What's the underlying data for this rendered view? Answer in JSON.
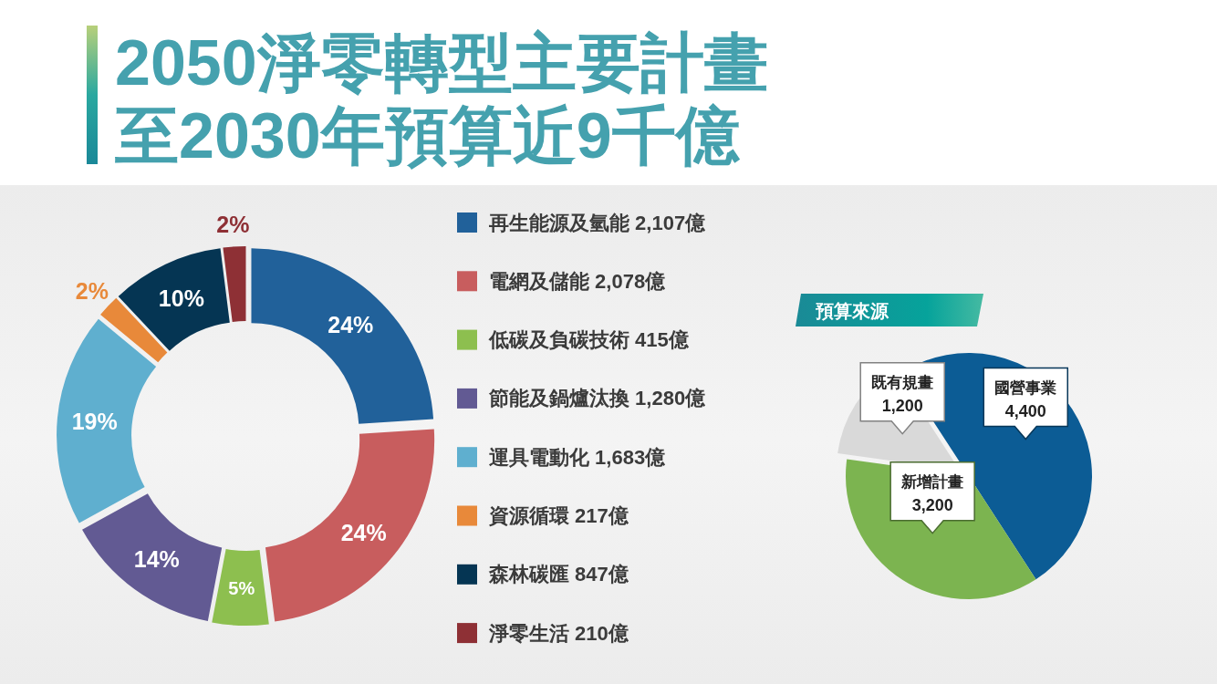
{
  "chart_data": [
    {
      "type": "donut",
      "title": "2050淨零轉型主要計畫至2030年預算近9千億",
      "categories": [
        "再生能源及氫能 2,107億",
        "電網及儲能 2,078億",
        "低碳及負碳技術 415億",
        "節能及鍋爐汰換 1,280億",
        "運具電動化 1,683億",
        "資源循環 217億",
        "森林碳匯 847億",
        "淨零生活 210億"
      ],
      "values": [
        24,
        24,
        5,
        14,
        19,
        2,
        10,
        2
      ],
      "colors": [
        "#21619a",
        "#c85d5e",
        "#8dbf4f",
        "#625a93",
        "#5fafcf",
        "#e8893a",
        "#053553",
        "#8e3035"
      ],
      "value_labels": [
        "24%",
        "24%",
        "5%",
        "14%",
        "19%",
        "2%",
        "10%",
        "2%"
      ],
      "legend": "right"
    },
    {
      "type": "pie",
      "title": "預算來源",
      "categories": [
        "國營事業",
        "新增計畫",
        "既有規畫"
      ],
      "values": [
        4400,
        3200,
        1200
      ],
      "colors": [
        "#0c5c95",
        "#7cb450",
        "#d9d9d9"
      ],
      "value_labels": [
        "4,400",
        "3,200",
        "1,200"
      ]
    }
  ]
}
